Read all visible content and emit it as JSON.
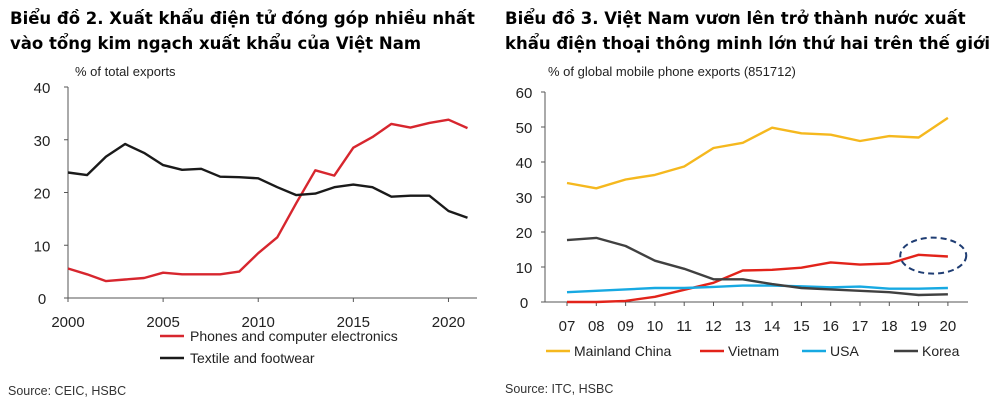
{
  "charts": [
    {
      "heading_lines": [
        "Biểu đồ 2. Xuất khẩu điện tử đóng góp nhiều nhất",
        "vào tổng kim ngạch xuất khẩu của Việt Nam"
      ],
      "source": "Source: CEIC, HSBC"
    },
    {
      "heading_lines": [
        "Biểu đồ 3. Việt Nam vươn lên trở thành nước xuất",
        "khẩu điện thoại thông minh lớn thứ hai trên thế giới"
      ],
      "source": "Source: ITC, HSBC"
    }
  ],
  "chart_data": [
    {
      "type": "line",
      "ylabel": "% of total exports",
      "xlim": [
        2000,
        2021.5
      ],
      "ylim": [
        0,
        40
      ],
      "x_ticks": [
        2000,
        2005,
        2010,
        2015,
        2020
      ],
      "x_tick_labels": [
        "2000",
        "2005",
        "2010",
        "2015",
        "2020"
      ],
      "y_ticks": [
        0,
        10,
        20,
        30,
        40
      ],
      "y_tick_labels": [
        "0",
        "10",
        "20",
        "30",
        "40"
      ],
      "x": [
        2000,
        2001,
        2002,
        2003,
        2004,
        2005,
        2006,
        2007,
        2008,
        2009,
        2010,
        2011,
        2012,
        2013,
        2014,
        2015,
        2016,
        2017,
        2018,
        2019,
        2020,
        2021
      ],
      "series": [
        {
          "name": "Phones and computer electronics",
          "color": "#d7262e",
          "values": [
            5.6,
            4.5,
            3.2,
            3.5,
            3.8,
            4.8,
            4.5,
            4.5,
            4.5,
            5.0,
            8.5,
            11.5,
            18.0,
            24.2,
            23.2,
            28.5,
            30.5,
            33.0,
            32.3,
            33.2,
            33.8,
            32.2
          ]
        },
        {
          "name": "Textile and footwear",
          "color": "#1a1a1a",
          "values": [
            23.8,
            23.3,
            26.8,
            29.2,
            27.5,
            25.2,
            24.3,
            24.5,
            23.0,
            22.9,
            22.7,
            21.0,
            19.5,
            19.8,
            21.0,
            21.5,
            21.0,
            19.2,
            19.4,
            19.4,
            16.5,
            15.2
          ]
        }
      ],
      "legend_position": "bottom",
      "grid": false
    },
    {
      "type": "line",
      "ylabel": "% of global mobile phone exports (851712)",
      "xlim": [
        0,
        13
      ],
      "ylim": [
        0,
        60
      ],
      "categories": [
        "07",
        "08",
        "09",
        "10",
        "11",
        "12",
        "13",
        "14",
        "15",
        "16",
        "17",
        "18",
        "19",
        "20"
      ],
      "y_ticks": [
        0,
        10,
        20,
        30,
        40,
        50,
        60
      ],
      "y_tick_labels": [
        "0",
        "10",
        "20",
        "30",
        "40",
        "50",
        "60"
      ],
      "series": [
        {
          "name": "Mainland China",
          "color": "#f5b81e",
          "values": [
            34.0,
            32.5,
            35.0,
            36.3,
            38.7,
            44.0,
            45.5,
            49.8,
            48.2,
            47.8,
            46.0,
            47.4,
            47.0,
            52.6
          ]
        },
        {
          "name": "Vietnam",
          "color": "#e2231a",
          "values": [
            0.0,
            0.0,
            0.3,
            1.5,
            3.5,
            5.5,
            9.0,
            9.2,
            9.8,
            11.3,
            10.7,
            11.0,
            13.5,
            13.0
          ]
        },
        {
          "name": "USA",
          "color": "#17a9e2",
          "values": [
            2.8,
            3.2,
            3.6,
            4.0,
            4.0,
            4.3,
            4.7,
            4.7,
            4.5,
            4.2,
            4.4,
            3.8,
            3.8,
            4.0
          ]
        },
        {
          "name": "Korea",
          "color": "#404040",
          "values": [
            17.7,
            18.3,
            16.0,
            11.8,
            9.5,
            6.5,
            6.5,
            5.1,
            4.0,
            3.6,
            3.2,
            2.8,
            2.0,
            2.2
          ]
        }
      ],
      "annotation": {
        "type": "dashed-ellipse",
        "target": "Vietnam",
        "categories": [
          "19",
          "20"
        ],
        "color": "#1f3d73"
      },
      "legend_position": "bottom",
      "grid": false
    }
  ]
}
